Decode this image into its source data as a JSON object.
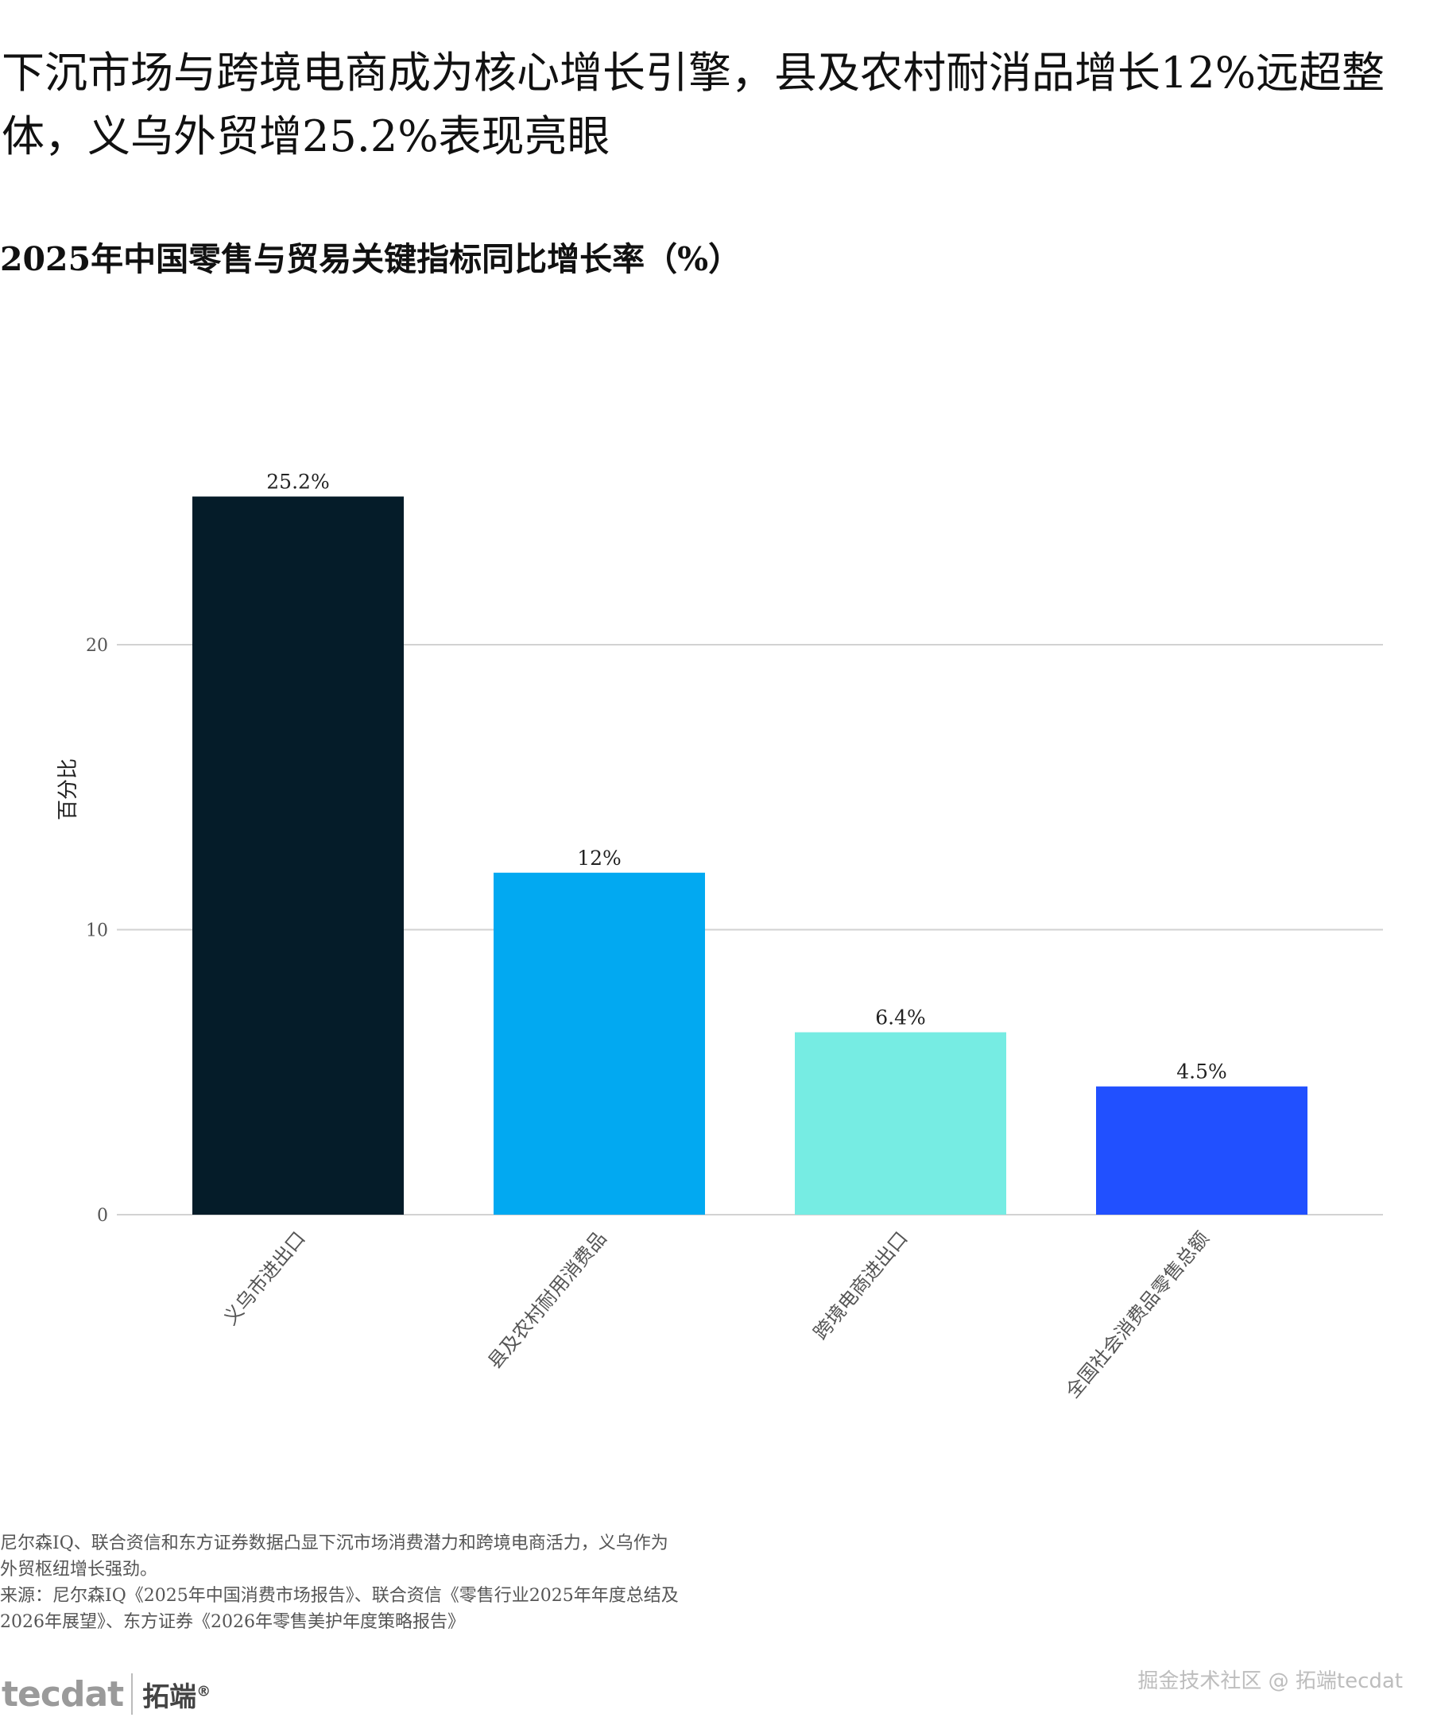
{
  "headline": "下沉市场与跨境电商成为核心增长引擎，县及农村耐消品增长12%远超整体，义乌外贸增25.2%表现亮眼",
  "subtitle": "2025年中国零售与贸易关键指标同比增长率（%）",
  "chart_data": {
    "type": "bar",
    "categories": [
      "义乌市进出口",
      "县及农村耐用消费品",
      "跨境电商进出口",
      "全国社会消费品零售总额"
    ],
    "values": [
      25.2,
      12,
      6.4,
      4.5
    ],
    "value_labels": [
      "25.2%",
      "12%",
      "6.4%",
      "4.5%"
    ],
    "colors": [
      "#051c29",
      "#02a9f1",
      "#76ece3",
      "#2150ff"
    ],
    "xlabel": "",
    "ylabel": "百分比",
    "ylim": [
      0,
      28
    ],
    "yticks": [
      0,
      10,
      20
    ],
    "grid": true,
    "legend": "none"
  },
  "footnote": {
    "description": "尼尔森IQ、联合资信和东方证券数据凸显下沉市场消费潜力和跨境电商活力，义乌作为外贸枢纽增长强劲。",
    "source": "来源：尼尔森IQ《2025年中国消费市场报告》、联合资信《零售行业2025年年度总结及2026年展望》、东方证券《2026年零售美护年度策略报告》"
  },
  "logo": {
    "mark": "tecdat",
    "cn": "拓端",
    "reg": "®"
  },
  "watermark": "掘金技术社区 @ 拓端tecdat"
}
